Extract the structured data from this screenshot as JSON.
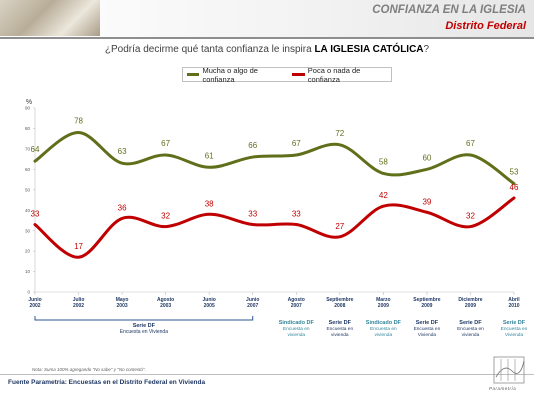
{
  "header": {
    "title": "CONFIANZA EN LA IGLESIA",
    "subtitle": "Distrito Federal"
  },
  "question": {
    "prefix": "¿Podría decirme qué tanta confianza le inspira ",
    "emphasis": "LA IGLESIA CATÓLICA",
    "suffix": "?"
  },
  "legend": {
    "series_1": "Mucha o algo de confianza",
    "series_2": "Poca o nada de confianza"
  },
  "colors": {
    "series_1": "#5f6f1a",
    "series_2": "#c00000",
    "source_dark": "#1f3864",
    "source_teal": "#31859c"
  },
  "chart_data": {
    "type": "line",
    "ylabel": "%",
    "ylim": [
      0,
      90
    ],
    "yticks": [
      0,
      10,
      20,
      30,
      40,
      50,
      60,
      70,
      80,
      90
    ],
    "categories": [
      [
        "Junio",
        "2002"
      ],
      [
        "Julio",
        "2002"
      ],
      [
        "Mayo",
        "2003"
      ],
      [
        "Agosto",
        "2003"
      ],
      [
        "Junio",
        "2005"
      ],
      [
        "Junio",
        "2007"
      ],
      [
        "Agosto",
        "2007"
      ],
      [
        "Septiembre",
        "2008"
      ],
      [
        "Marzo",
        "2009"
      ],
      [
        "Septiembre",
        "2009"
      ],
      [
        "Diciembre",
        "2009"
      ],
      [
        "Abril",
        "2010"
      ]
    ],
    "series": [
      {
        "name": "Mucha o algo de confianza",
        "values": [
          64,
          78,
          63,
          67,
          61,
          66,
          67,
          72,
          58,
          60,
          67,
          53
        ]
      },
      {
        "name": "Poca o nada de confianza",
        "values": [
          33,
          17,
          36,
          32,
          38,
          33,
          33,
          27,
          42,
          39,
          32,
          46
        ]
      }
    ],
    "sources": [
      {
        "lines": [
          "Serie DF",
          "Encuesta en Vivienda"
        ],
        "from": 0,
        "to": 5,
        "style": "bracket"
      },
      {
        "lines": [
          "Sindicado DF",
          "Encuesta en",
          "vivienda"
        ],
        "at": 6,
        "style": "teal"
      },
      {
        "lines": [
          "Serie DF",
          "Encuesta en",
          "vivienda"
        ],
        "at": 7,
        "style": "dark"
      },
      {
        "lines": [
          "Sindicado DF",
          "Encuesta en",
          "vivienda"
        ],
        "at": 8,
        "style": "teal"
      },
      {
        "lines": [
          "Serie DF",
          "Encuesta en",
          "Vivienda"
        ],
        "at": 9,
        "style": "dark"
      },
      {
        "lines": [
          "Serie DF",
          "Encuesta en",
          "vivienda"
        ],
        "at": 10,
        "style": "dark"
      },
      {
        "lines": [
          "Serie DF",
          "Encuesta en",
          "Vivienda"
        ],
        "at": 11,
        "style": "teal"
      }
    ]
  },
  "note": "Nota: Suma 100% agregando \"No sabe\" y \"No contestó\".",
  "footer": "Fuente Parametría: Encuestas en el Distrito Federal en Vivienda",
  "logo_text": "Parametría"
}
